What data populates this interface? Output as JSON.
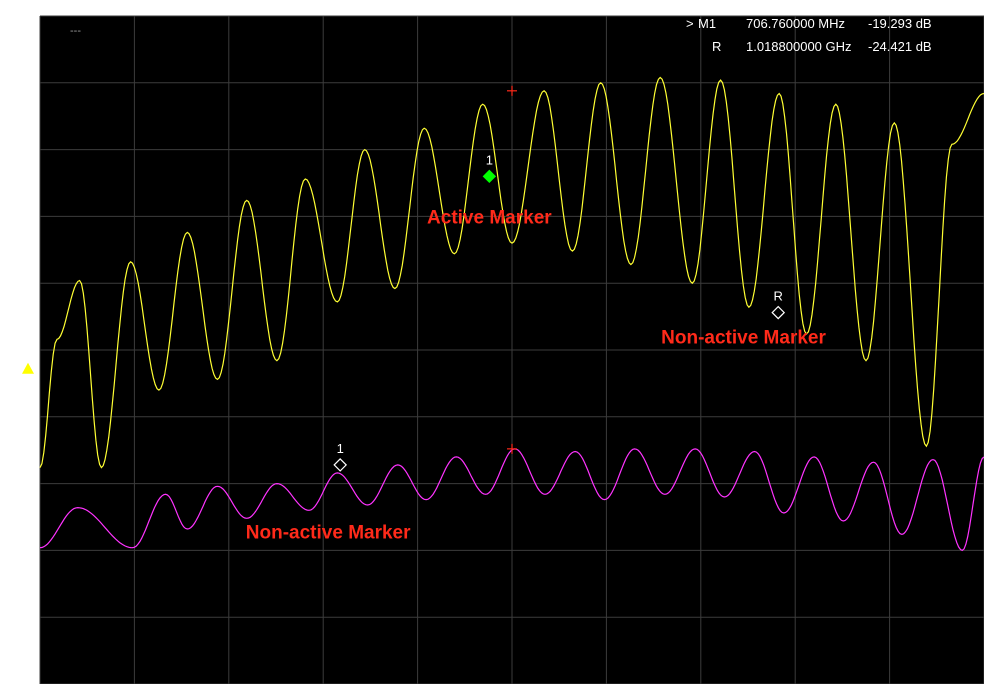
{
  "top_left_label": "---",
  "readouts": [
    {
      "prefix": ">",
      "name": "M1",
      "freq": "706.760000 MHz",
      "value": "-19.293 dB"
    },
    {
      "prefix": "",
      "name": "R",
      "freq": "1.018800000 GHz",
      "value": "-24.421 dB"
    }
  ],
  "colors": {
    "background": "#000000",
    "grid": "#3c3c3c",
    "trace1": "#ffff33",
    "trace2": "#ff33ff",
    "active_marker": "#00ff00",
    "annotation": "#ff2a1a",
    "ref_arrow": "#ffff00"
  },
  "chart_data": {
    "type": "line",
    "title": "",
    "xlabel": "",
    "ylabel": "",
    "ylim": [
      -38.3,
      -13.3
    ],
    "yticks": [
      "-13.3",
      "-15.8",
      "-18.3",
      "-20.8",
      "-23.3",
      "-25.8",
      "-28.3",
      "-30.8",
      "-33.3",
      "-35.8",
      "-38.3"
    ],
    "xlim": [
      0,
      100
    ],
    "grid": true,
    "reference_level": -26.5,
    "series": [
      {
        "color": "#ffff33",
        "x": [
          0,
          1.8,
          4.2,
          6.5,
          9.6,
          12.6,
          15.6,
          18.8,
          21.9,
          25.1,
          28.1,
          31.5,
          34.4,
          37.6,
          40.7,
          43.9,
          46.9,
          50.0,
          53.4,
          56.4,
          59.4,
          62.6,
          65.7,
          69.1,
          72.1,
          75.1,
          78.3,
          81.2,
          84.3,
          87.5,
          90.5,
          93.9,
          96.6,
          100
        ],
        "y": [
          -30.2,
          -25.4,
          -23.2,
          -30.2,
          -22.5,
          -27.3,
          -21.4,
          -26.9,
          -20.2,
          -26.2,
          -19.4,
          -24.0,
          -18.3,
          -23.5,
          -17.5,
          -22.2,
          -16.6,
          -21.8,
          -16.1,
          -22.1,
          -15.8,
          -22.6,
          -15.6,
          -23.3,
          -15.7,
          -24.2,
          -16.2,
          -25.2,
          -16.6,
          -26.2,
          -17.3,
          -29.4,
          -18.1,
          -16.2
        ]
      },
      {
        "color": "#ff33ff",
        "x": [
          0,
          4.0,
          9.8,
          13.3,
          15.6,
          18.8,
          21.9,
          25.1,
          28.5,
          31.5,
          34.7,
          37.9,
          40.9,
          44.1,
          47.2,
          50.3,
          53.5,
          56.7,
          59.8,
          63.0,
          66.2,
          69.4,
          72.5,
          75.7,
          78.8,
          82.0,
          85.1,
          88.3,
          91.3,
          94.6,
          97.7,
          100
        ],
        "y": [
          -33.2,
          -31.7,
          -33.2,
          -31.2,
          -32.5,
          -30.9,
          -32.1,
          -30.8,
          -31.8,
          -30.4,
          -31.6,
          -30.1,
          -31.4,
          -29.8,
          -31.2,
          -29.5,
          -31.2,
          -29.6,
          -31.4,
          -29.5,
          -31.2,
          -29.5,
          -31.3,
          -29.6,
          -31.9,
          -29.8,
          -32.2,
          -30.0,
          -32.7,
          -29.9,
          -33.3,
          -29.8
        ]
      }
    ],
    "markers": [
      {
        "label": "1",
        "x": 47.6,
        "y": -19.3,
        "style": "active",
        "color": "#00ff00"
      },
      {
        "label": "R",
        "x": 78.2,
        "y": -24.4,
        "style": "hollow",
        "color": "#ffffff"
      },
      {
        "label": "1",
        "x": 31.8,
        "y": -30.1,
        "style": "hollow",
        "color": "#ffffff"
      }
    ],
    "peaks": [
      {
        "x": 50.0,
        "y": -16.1,
        "color": "#ff2a1a"
      },
      {
        "x": 50.0,
        "y": -29.5,
        "color": "#ff2a1a"
      }
    ],
    "annotations": [
      {
        "text": "Active Marker",
        "x": 41.0,
        "y": -20.8
      },
      {
        "text": "Non-active Marker",
        "x": 65.8,
        "y": -25.3
      },
      {
        "text": "Non-active Marker",
        "x": 21.8,
        "y": -32.6
      }
    ]
  }
}
